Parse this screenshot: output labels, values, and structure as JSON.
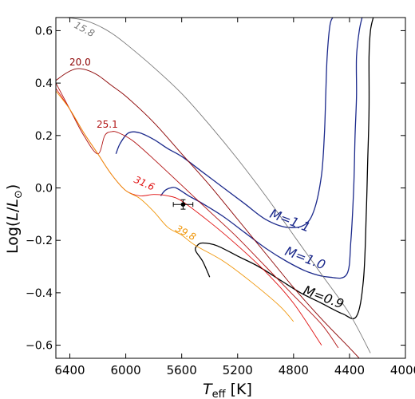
{
  "chart_data": {
    "type": "line",
    "title": "",
    "xlabel": "T_eff  [K]",
    "ylabel": "Log(L/L_sun)",
    "xlim": [
      6500,
      4000
    ],
    "ylim": [
      -0.65,
      0.65
    ],
    "x_axis_reversed": true,
    "x_ticks": [
      6400,
      6000,
      5600,
      5200,
      4800,
      4400,
      4000
    ],
    "x_tick_labels": [
      "6400",
      "6000",
      "5600",
      "5200",
      "4800",
      "4400",
      "4000"
    ],
    "y_ticks": [
      -0.6,
      -0.4,
      -0.2,
      0.0,
      0.2,
      0.4,
      0.6
    ],
    "y_tick_labels": [
      "−0.6",
      "−0.4",
      "−0.2",
      "0.0",
      "0.2",
      "0.4",
      "0.6"
    ],
    "grid": false,
    "legend": "none",
    "series": [
      {
        "name": "M=1.1",
        "label": "M=1.1",
        "color": "#1c2a8c",
        "x": [
          6070,
          6040,
          5980,
          5900,
          5800,
          5700,
          5600,
          5450,
          5300,
          5150,
          5000,
          4850,
          4720,
          4650,
          4600,
          4580,
          4570,
          4560,
          4540,
          4520
        ],
        "y": [
          0.13,
          0.17,
          0.21,
          0.21,
          0.185,
          0.15,
          0.12,
          0.06,
          0.0,
          -0.06,
          -0.12,
          -0.15,
          -0.14,
          -0.08,
          0.05,
          0.2,
          0.35,
          0.5,
          0.62,
          0.65
        ]
      },
      {
        "name": "M=1.0",
        "label": "M=1.0",
        "color": "#1c2a8c",
        "x": [
          5750,
          5720,
          5680,
          5640,
          5550,
          5450,
          5300,
          5150,
          5000,
          4850,
          4700,
          4550,
          4420,
          4390,
          4370,
          4360,
          4350,
          4350,
          4330,
          4310
        ],
        "y": [
          -0.03,
          -0.01,
          0.0,
          0.0,
          -0.03,
          -0.06,
          -0.11,
          -0.17,
          -0.23,
          -0.28,
          -0.32,
          -0.34,
          -0.33,
          -0.2,
          0.0,
          0.2,
          0.35,
          0.5,
          0.6,
          0.65
        ]
      },
      {
        "name": "M=0.9",
        "label": "M=0.9",
        "color": "#000000",
        "x": [
          5400,
          5450,
          5500,
          5490,
          5450,
          5350,
          5200,
          5050,
          4900,
          4750,
          4600,
          4450,
          4350,
          4300,
          4280,
          4270,
          4260,
          4260,
          4250,
          4230
        ],
        "y": [
          -0.34,
          -0.28,
          -0.24,
          -0.22,
          -0.21,
          -0.22,
          -0.26,
          -0.3,
          -0.35,
          -0.4,
          -0.44,
          -0.48,
          -0.49,
          -0.35,
          -0.1,
          0.1,
          0.3,
          0.5,
          0.6,
          0.65
        ]
      },
      {
        "name": "15.8",
        "label": "15.8",
        "color": "#7a7a7a",
        "x": [
          6420,
          6300,
          6200,
          6100,
          6000,
          5800,
          5600,
          5400,
          5200,
          5000,
          4800,
          4600,
          4400,
          4250
        ],
        "y": [
          0.65,
          0.64,
          0.62,
          0.59,
          0.55,
          0.46,
          0.36,
          0.24,
          0.11,
          -0.03,
          -0.18,
          -0.33,
          -0.48,
          -0.63
        ]
      },
      {
        "name": "20.0",
        "label": "20.0",
        "color": "#8b0000",
        "x": [
          6500,
          6420,
          6350,
          6280,
          6200,
          6100,
          6000,
          5800,
          5600,
          5400,
          5200,
          5000,
          4800,
          4600,
          4400,
          4330
        ],
        "y": [
          0.41,
          0.44,
          0.455,
          0.45,
          0.43,
          0.39,
          0.35,
          0.25,
          0.13,
          0.01,
          -0.12,
          -0.25,
          -0.38,
          -0.5,
          -0.61,
          -0.65
        ]
      },
      {
        "name": "25.1",
        "label": "25.1",
        "color": "#b01010",
        "x": [
          6500,
          6400,
          6300,
          6200,
          6150,
          6100,
          6050,
          5950,
          5800,
          5600,
          5400,
          5200,
          5000,
          4800,
          4600,
          4480
        ],
        "y": [
          0.4,
          0.3,
          0.2,
          0.13,
          0.2,
          0.215,
          0.21,
          0.18,
          0.11,
          0.01,
          -0.09,
          -0.19,
          -0.3,
          -0.41,
          -0.52,
          -0.61
        ]
      },
      {
        "name": "31.6",
        "label": "31.6",
        "color": "#e01010",
        "x": [
          6500,
          6400,
          6300,
          6200,
          6100,
          6000,
          5900,
          5800,
          5700,
          5600,
          5400,
          5200,
          5000,
          4800,
          4600
        ],
        "y": [
          0.38,
          0.3,
          0.21,
          0.13,
          0.05,
          -0.01,
          -0.03,
          -0.025,
          -0.03,
          -0.05,
          -0.13,
          -0.22,
          -0.32,
          -0.44,
          -0.6
        ]
      },
      {
        "name": "39.8",
        "label": "39.8",
        "color": "#f0960a",
        "x": [
          6500,
          6400,
          6300,
          6200,
          6100,
          6000,
          5900,
          5800,
          5700,
          5600,
          5500,
          5300,
          5100,
          4900,
          4800
        ],
        "y": [
          0.37,
          0.3,
          0.21,
          0.13,
          0.05,
          -0.01,
          -0.04,
          -0.09,
          -0.15,
          -0.18,
          -0.22,
          -0.28,
          -0.36,
          -0.45,
          -0.51
        ]
      }
    ],
    "observed_point": {
      "teff": 5590,
      "log_l": -0.063,
      "teff_err": 70,
      "log_l_err": 0.018,
      "color": "#000000"
    },
    "labels": {
      "m11": "M=1.1",
      "m10": "M=1.0",
      "m09": "M=0.9",
      "a158": "15.8",
      "a200": "20.0",
      "a251": "25.1",
      "a316": "31.6",
      "a398": "39.8"
    }
  }
}
